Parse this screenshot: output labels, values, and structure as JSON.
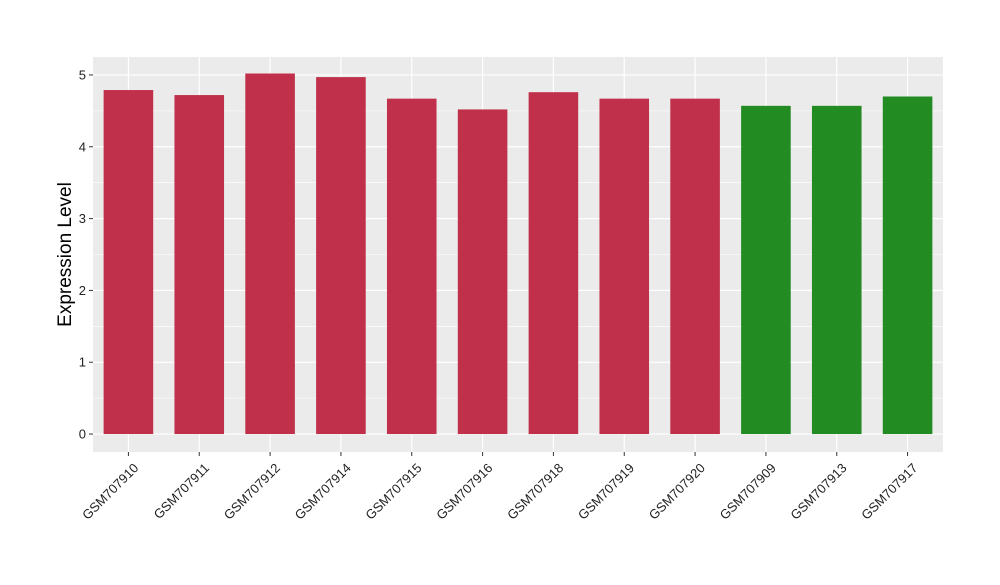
{
  "chart_data": {
    "type": "bar",
    "title": "",
    "xlabel": "",
    "ylabel": "Expression Level",
    "ylim": [
      -0.25,
      5.25
    ],
    "yticks": [
      0,
      1,
      2,
      3,
      4,
      5
    ],
    "grid": true,
    "legend": "none",
    "categories": [
      "GSM707910",
      "GSM707911",
      "GSM707912",
      "GSM707914",
      "GSM707915",
      "GSM707916",
      "GSM707918",
      "GSM707919",
      "GSM707920",
      "GSM707909",
      "GSM707913",
      "GSM707917"
    ],
    "values": [
      4.79,
      4.72,
      5.02,
      4.97,
      4.67,
      4.52,
      4.76,
      4.67,
      4.67,
      4.57,
      4.57,
      4.7
    ],
    "groups": [
      "red",
      "red",
      "red",
      "red",
      "red",
      "red",
      "red",
      "red",
      "red",
      "green",
      "green",
      "green"
    ],
    "colors": {
      "red": "#c0304a",
      "green": "#228b22",
      "panel": "#ebebeb",
      "grid": "#ffffff"
    }
  }
}
